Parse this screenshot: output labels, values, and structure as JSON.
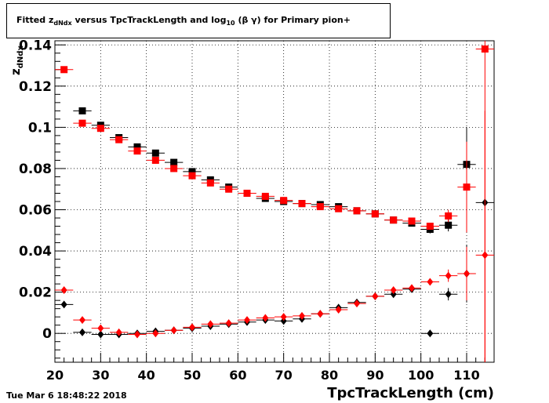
{
  "chart_data": {
    "type": "scatter",
    "title_parts": [
      "Fitted  z",
      "dNdx",
      "  versus TpcTrackLength and log",
      "10",
      " (β γ) for Primary pion+"
    ],
    "xlabel": "TpcTrackLength (cm)",
    "ylabel_main": "z",
    "ylabel_sub": "dNdx",
    "xlim": [
      20,
      116
    ],
    "ylim": [
      -0.014,
      0.142
    ],
    "xticks": [
      "20",
      "30",
      "40",
      "50",
      "60",
      "70",
      "80",
      "90",
      "100",
      "110"
    ],
    "yticks": [
      "0",
      "0.02",
      "0.04",
      "0.06",
      "0.08",
      "0.1",
      "0.12",
      "0.14"
    ],
    "grid": true,
    "series": [
      {
        "color": "#000000",
        "marker": "square",
        "x": [
          26,
          30,
          34,
          38,
          42,
          46,
          50,
          54,
          58,
          62,
          66,
          70,
          74,
          78,
          82,
          86,
          90,
          94,
          98,
          102,
          106,
          110
        ],
        "y": [
          0.108,
          0.101,
          0.095,
          0.0905,
          0.0875,
          0.083,
          0.0785,
          0.0745,
          0.071,
          0.068,
          0.0655,
          0.064,
          0.063,
          0.0625,
          0.0615,
          0.0595,
          0.058,
          0.055,
          0.0535,
          0.0505,
          0.0525,
          0.082
        ],
        "err": [
          0,
          0,
          0,
          0,
          0,
          0,
          0,
          0,
          0,
          0,
          0,
          0,
          0,
          0,
          0,
          0,
          0,
          0,
          0,
          0.002,
          0.003,
          0.018
        ]
      },
      {
        "color": "#ff0000",
        "marker": "square",
        "x": [
          22,
          26,
          30,
          34,
          38,
          42,
          46,
          50,
          54,
          58,
          62,
          66,
          70,
          74,
          78,
          82,
          86,
          90,
          94,
          98,
          102,
          106,
          110,
          114
        ],
        "y": [
          0.128,
          0.102,
          0.0995,
          0.094,
          0.0885,
          0.084,
          0.08,
          0.0765,
          0.073,
          0.07,
          0.068,
          0.0665,
          0.0645,
          0.063,
          0.0615,
          0.0605,
          0.0595,
          0.058,
          0.055,
          0.0545,
          0.052,
          0.057,
          0.071,
          0.138
        ],
        "err": [
          0,
          0,
          0,
          0,
          0,
          0,
          0,
          0,
          0,
          0,
          0,
          0,
          0,
          0,
          0,
          0,
          0,
          0,
          0,
          0,
          0,
          0.003,
          0.022,
          0.16
        ]
      },
      {
        "color": "#000000",
        "marker": "diamond",
        "x": [
          22,
          26,
          30,
          34,
          38,
          42,
          46,
          50,
          54,
          58,
          62,
          66,
          70,
          74,
          78,
          82,
          86,
          90,
          94,
          98,
          102,
          106,
          110,
          114
        ],
        "y": [
          0.014,
          0.0005,
          -0.0005,
          -0.0005,
          0.0,
          0.001,
          0.0015,
          0.0025,
          0.0035,
          0.0045,
          0.0055,
          0.0065,
          0.006,
          0.007,
          0.0095,
          0.0125,
          0.015,
          0.018,
          0.019,
          0.0215,
          0.0,
          0.019,
          0.029,
          0.0635
        ],
        "err": [
          0,
          0,
          0,
          0,
          0,
          0,
          0,
          0,
          0,
          0,
          0,
          0,
          0,
          0,
          0,
          0,
          0,
          0,
          0,
          0,
          0,
          0.003,
          0.014,
          0
        ]
      },
      {
        "color": "#ff0000",
        "marker": "diamond",
        "x": [
          22,
          26,
          30,
          34,
          38,
          42,
          46,
          50,
          54,
          58,
          62,
          66,
          70,
          74,
          78,
          82,
          86,
          90,
          94,
          98,
          102,
          106,
          110,
          114
        ],
        "y": [
          0.021,
          0.0065,
          0.0025,
          0.0005,
          -0.0005,
          0.0,
          0.0015,
          0.003,
          0.0045,
          0.005,
          0.0065,
          0.0075,
          0.008,
          0.0085,
          0.0095,
          0.0115,
          0.0145,
          0.018,
          0.021,
          0.022,
          0.025,
          0.028,
          0.029,
          0.038
        ],
        "err": [
          0,
          0,
          0,
          0,
          0,
          0,
          0,
          0,
          0,
          0,
          0,
          0,
          0,
          0,
          0,
          0,
          0,
          0,
          0,
          0,
          0,
          0.003,
          0.013,
          0.07
        ]
      }
    ]
  },
  "footer": {
    "date": "Tue Mar  6 18:48:22 2018"
  }
}
